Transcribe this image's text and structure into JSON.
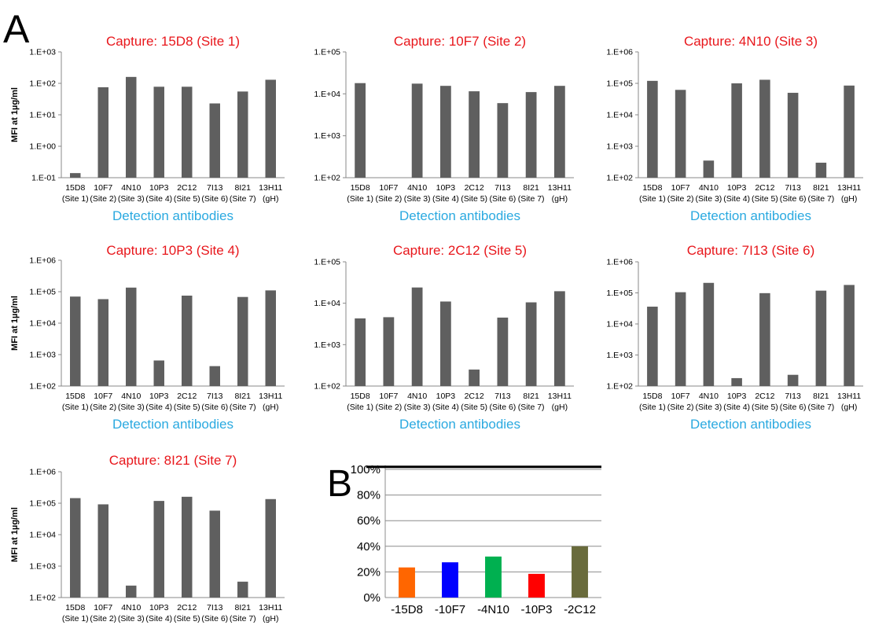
{
  "panel_labels": [
    "A",
    "B"
  ],
  "chart_data": [
    {
      "type": "bar",
      "panel": "A",
      "title": "Capture: 15D8 (Site 1)",
      "ylabel": "MFI at 1µg/ml",
      "xlabel": "Detection antibodies",
      "yscale": "log",
      "ylim": [
        0.1,
        1000
      ],
      "yticks": [
        "1.E-01",
        "1.E+00",
        "1.E+01",
        "1.E+02",
        "1.E+03"
      ],
      "categories": [
        [
          "15D8",
          "(Site 1)"
        ],
        [
          "10F7",
          "(Site 2)"
        ],
        [
          "4N10",
          "(Site 3)"
        ],
        [
          "10P3",
          "(Site 4)"
        ],
        [
          "2C12",
          "(Site 5)"
        ],
        [
          "7I13",
          "(Site 6)"
        ],
        [
          "8I21",
          "(Site 7)"
        ],
        [
          "13H11",
          "(gH)"
        ]
      ],
      "values": [
        0.14,
        75,
        160,
        78,
        78,
        23,
        55,
        130
      ],
      "bar_color": "#5f5f5f"
    },
    {
      "type": "bar",
      "panel": "A",
      "title": "Capture: 10F7 (Site 2)",
      "ylabel": "",
      "xlabel": "Detection antibodies",
      "yscale": "log",
      "ylim": [
        100,
        100000
      ],
      "yticks": [
        "1.E+02",
        "1.E+03",
        "1.E+04",
        "1.E+05"
      ],
      "categories": [
        [
          "15D8",
          "(Site 1)"
        ],
        [
          "10F7",
          "(Site 2)"
        ],
        [
          "4N10",
          "(Site 3)"
        ],
        [
          "10P3",
          "(Site 4)"
        ],
        [
          "2C12",
          "(Site 5)"
        ],
        [
          "7I13",
          "(Site 6)"
        ],
        [
          "8I21",
          "(Site 7)"
        ],
        [
          "13H11",
          "(gH)"
        ]
      ],
      "values": [
        18000,
        100,
        17500,
        15500,
        11500,
        6000,
        11000,
        15500
      ],
      "bar_color": "#5f5f5f"
    },
    {
      "type": "bar",
      "panel": "A",
      "title": "Capture: 4N10 (Site 3)",
      "ylabel": "",
      "xlabel": "Detection antibodies",
      "yscale": "log",
      "ylim": [
        100,
        1000000
      ],
      "yticks": [
        "1.E+02",
        "1.E+03",
        "1.E+04",
        "1.E+05",
        "1.E+06"
      ],
      "categories": [
        [
          "15D8",
          "(Site 1)"
        ],
        [
          "10F7",
          "(Site 2)"
        ],
        [
          "4N10",
          "(Site 3)"
        ],
        [
          "10P3",
          "(Site 4)"
        ],
        [
          "2C12",
          "(Site 5)"
        ],
        [
          "7I13",
          "(Site 6)"
        ],
        [
          "8I21",
          "(Site 7)"
        ],
        [
          "13H11",
          "(gH)"
        ]
      ],
      "values": [
        120000,
        62000,
        350,
        100000,
        130000,
        50000,
        300,
        85000
      ],
      "bar_color": "#5f5f5f"
    },
    {
      "type": "bar",
      "panel": "A",
      "title": "Capture: 10P3 (Site 4)",
      "ylabel": "MFI at 1µg/ml",
      "xlabel": "Detection antibodies",
      "yscale": "log",
      "ylim": [
        100,
        1000000
      ],
      "yticks": [
        "1.E+02",
        "1.E+03",
        "1.E+04",
        "1.E+05",
        "1.E+06"
      ],
      "categories": [
        [
          "15D8",
          "(Site 1)"
        ],
        [
          "10F7",
          "(Site 2)"
        ],
        [
          "4N10",
          "(Site 3)"
        ],
        [
          "10P3",
          "(Site 4)"
        ],
        [
          "2C12",
          "(Site 5)"
        ],
        [
          "7I13",
          "(Site 6)"
        ],
        [
          "8I21",
          "(Site 7)"
        ],
        [
          "13H11",
          "(gH)"
        ]
      ],
      "values": [
        70000,
        58000,
        135000,
        650,
        75000,
        430,
        68000,
        110000
      ],
      "bar_color": "#5f5f5f"
    },
    {
      "type": "bar",
      "panel": "A",
      "title": "Capture: 2C12 (Site 5)",
      "ylabel": "",
      "xlabel": "Detection antibodies",
      "yscale": "log",
      "ylim": [
        100,
        100000
      ],
      "yticks": [
        "1.E+02",
        "1.E+03",
        "1.E+04",
        "1.E+05"
      ],
      "categories": [
        [
          "15D8",
          "(Site 1)"
        ],
        [
          "10F7",
          "(Site 2)"
        ],
        [
          "4N10",
          "(Site 3)"
        ],
        [
          "10P3",
          "(Site 4)"
        ],
        [
          "2C12",
          "(Site 5)"
        ],
        [
          "7I13",
          "(Site 6)"
        ],
        [
          "8I21",
          "(Site 7)"
        ],
        [
          "13H11",
          "(gH)"
        ]
      ],
      "values": [
        4300,
        4600,
        24000,
        11000,
        250,
        4500,
        10500,
        19500
      ],
      "bar_color": "#5f5f5f"
    },
    {
      "type": "bar",
      "panel": "A",
      "title": "Capture: 7I13 (Site 6)",
      "ylabel": "",
      "xlabel": "Detection antibodies",
      "yscale": "log",
      "ylim": [
        100,
        1000000
      ],
      "yticks": [
        "1.E+02",
        "1.E+03",
        "1.E+04",
        "1.E+05",
        "1.E+06"
      ],
      "categories": [
        [
          "15D8",
          "(Site 1)"
        ],
        [
          "10F7",
          "(Site 2)"
        ],
        [
          "4N10",
          "(Site 3)"
        ],
        [
          "10P3",
          "(Site 4)"
        ],
        [
          "2C12",
          "(Site 5)"
        ],
        [
          "7I13",
          "(Site 6)"
        ],
        [
          "8I21",
          "(Site 7)"
        ],
        [
          "13H11",
          "(gH)"
        ]
      ],
      "values": [
        36000,
        105000,
        210000,
        180,
        98000,
        230,
        118000,
        180000
      ],
      "bar_color": "#5f5f5f"
    },
    {
      "type": "bar",
      "panel": "A",
      "title": "Capture: 8I21 (Site 7)",
      "ylabel": "MFI at 1µg/ml",
      "xlabel": "Detection antibodies",
      "yscale": "log",
      "ylim": [
        100,
        1000000
      ],
      "yticks": [
        "1.E+02",
        "1.E+03",
        "1.E+04",
        "1.E+05",
        "1.E+06"
      ],
      "categories": [
        [
          "15D8",
          "(Site 1)"
        ],
        [
          "10F7",
          "(Site 2)"
        ],
        [
          "4N10",
          "(Site 3)"
        ],
        [
          "10P3",
          "(Site 4)"
        ],
        [
          "2C12",
          "(Site 5)"
        ],
        [
          "7I13",
          "(Site 6)"
        ],
        [
          "8I21",
          "(Site 7)"
        ],
        [
          "13H11",
          "(gH)"
        ]
      ],
      "values": [
        145000,
        92000,
        240,
        118000,
        160000,
        58000,
        320,
        135000
      ],
      "bar_color": "#5f5f5f"
    },
    {
      "type": "bar",
      "panel": "B",
      "title": "",
      "xlabel": "",
      "ylabel": "",
      "ylim": [
        0,
        100
      ],
      "yticks": [
        "0%",
        "20%",
        "40%",
        "60%",
        "80%",
        "100%"
      ],
      "grid": true,
      "reference_line": 102,
      "categories": [
        "-15D8",
        "-10F7",
        "-4N10",
        "-10P3",
        "-2C12"
      ],
      "values": [
        23.5,
        27.5,
        32,
        18.5,
        40
      ],
      "colors": [
        "#ff6600",
        "#0000ff",
        "#00b050",
        "#ff0000",
        "#696b3c"
      ]
    }
  ]
}
